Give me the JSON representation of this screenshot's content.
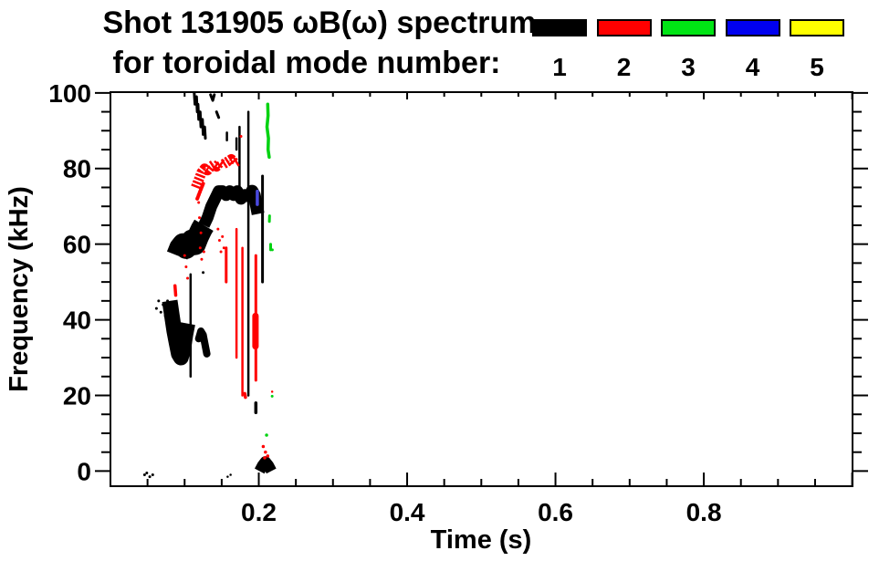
{
  "title": {
    "line1": "Shot 131905 ωB(ω) spectrum",
    "line2": "for toroidal mode number:"
  },
  "legend": {
    "items": [
      {
        "mode": "1",
        "color": "#000000"
      },
      {
        "mode": "2",
        "color": "#ff0000"
      },
      {
        "mode": "3",
        "color": "#00e414"
      },
      {
        "mode": "4",
        "color": "#0000f0"
      },
      {
        "mode": "5",
        "color": "#ffff00"
      }
    ]
  },
  "chart_data": {
    "type": "scatter",
    "title": "Shot 131905 ωB(ω) spectrum for toroidal mode number: 1 2 3 4 5",
    "xlabel": "Time (s)",
    "ylabel": "Frequency (kHz)",
    "xlim": [
      0,
      1.0
    ],
    "ylim": [
      -4,
      100.2
    ],
    "grid": false,
    "x_ticks": [
      {
        "v": 0.2,
        "label": "0.2"
      },
      {
        "v": 0.4,
        "label": "0.4"
      },
      {
        "v": 0.6,
        "label": "0.6"
      },
      {
        "v": 0.8,
        "label": "0.8"
      },
      {
        "v": 1.0,
        "label": ""
      }
    ],
    "x_minor_step": 0.05,
    "y_ticks": [
      {
        "v": 0,
        "label": "0"
      },
      {
        "v": 20,
        "label": "20"
      },
      {
        "v": 40,
        "label": "40"
      },
      {
        "v": 60,
        "label": "60"
      },
      {
        "v": 80,
        "label": "80"
      },
      {
        "v": 100,
        "label": "100"
      }
    ],
    "y_minor_step": 5,
    "series": [
      {
        "name": "n=1",
        "color": "#000000",
        "strokes": [
          {
            "w": 3,
            "pts": [
              [
                0.113,
                100
              ],
              [
                0.114,
                97
              ],
              [
                0.116,
                99
              ],
              [
                0.117,
                95
              ],
              [
                0.118,
                97
              ],
              [
                0.119,
                93
              ],
              [
                0.121,
                95
              ],
              [
                0.122,
                91
              ],
              [
                0.124,
                93
              ],
              [
                0.125,
                89
              ],
              [
                0.127,
                91
              ],
              [
                0.128,
                88
              ]
            ]
          },
          {
            "w": 3,
            "pts": [
              [
                0.143,
                95
              ],
              [
                0.146,
                93.5
              ]
            ]
          },
          {
            "w": 3,
            "pts": [
              [
                0.135,
                99.5
              ],
              [
                0.138,
                98
              ],
              [
                0.14,
                99.5
              ]
            ]
          },
          {
            "w": 2.5,
            "pts": [
              [
                0.157,
                89.5
              ],
              [
                0.157,
                87.5
              ]
            ]
          },
          {
            "w": 2.5,
            "pts": [
              [
                0.17,
                88
              ],
              [
                0.17,
                85
              ]
            ]
          },
          {
            "w": 2.5,
            "pts": [
              [
                0.174,
                91
              ],
              [
                0.174,
                74
              ]
            ]
          },
          {
            "w": 2.5,
            "pts": [
              [
                0.186,
                95
              ],
              [
                0.186,
                20
              ]
            ]
          },
          {
            "w": 3.5,
            "pts": [
              [
                0.196,
                18
              ],
              [
                0.196,
                15.5
              ]
            ]
          },
          {
            "w": 3,
            "pts": [
              [
                0.205,
                78
              ],
              [
                0.205,
                50
              ]
            ]
          },
          {
            "w": 24,
            "pts": [
              [
                0.09,
                57
              ],
              [
                0.094,
                59
              ],
              [
                0.098,
                60
              ],
              [
                0.102,
                59
              ],
              [
                0.106,
                60
              ],
              [
                0.11,
                61
              ],
              [
                0.114,
                60
              ],
              [
                0.118,
                62
              ],
              [
                0.123,
                64
              ],
              [
                0.126,
                65
              ]
            ]
          },
          {
            "w": 13,
            "pts": [
              [
                0.126,
                65
              ],
              [
                0.131,
                67
              ],
              [
                0.136,
                70
              ],
              [
                0.141,
                72
              ],
              [
                0.146,
                74
              ],
              [
                0.151,
                74
              ],
              [
                0.156,
                73
              ],
              [
                0.161,
                74
              ],
              [
                0.166,
                73
              ],
              [
                0.171,
                74
              ],
              [
                0.176,
                72
              ],
              [
                0.181,
                73
              ],
              [
                0.185,
                72
              ]
            ]
          },
          {
            "w": 14,
            "pts": [
              [
                0.188,
                71
              ],
              [
                0.191,
                74
              ],
              [
                0.194,
                73
              ],
              [
                0.197,
                70
              ],
              [
                0.199,
                68
              ]
            ]
          },
          {
            "w": 17,
            "pts": [
              [
                0.08,
                45
              ],
              [
                0.083,
                41
              ],
              [
                0.086,
                37
              ],
              [
                0.089,
                34
              ],
              [
                0.092,
                31
              ],
              [
                0.095,
                30
              ],
              [
                0.098,
                32
              ],
              [
                0.101,
                36
              ],
              [
                0.104,
                39
              ]
            ]
          },
          {
            "w": 2.5,
            "pts": [
              [
                0.108,
                52
              ],
              [
                0.108,
                25
              ]
            ]
          },
          {
            "w": 8,
            "pts": [
              [
                0.119,
                35
              ],
              [
                0.122,
                37
              ],
              [
                0.125,
                36
              ],
              [
                0.128,
                33
              ],
              [
                0.13,
                31
              ]
            ]
          },
          {
            "w": 3,
            "pts": [
              [
                0.062,
                43
              ]
            ]
          },
          {
            "w": 3,
            "pts": [
              [
                0.065,
                45
              ]
            ]
          },
          {
            "w": 3,
            "pts": [
              [
                0.068,
                42
              ]
            ]
          },
          {
            "w": 3,
            "pts": [
              [
                0.071,
                44
              ]
            ]
          },
          {
            "w": 3,
            "pts": [
              [
                0.074,
                41
              ]
            ]
          },
          {
            "w": 3,
            "pts": [
              [
                0.077,
                45
              ]
            ]
          },
          {
            "w": 3,
            "pts": [
              [
                0.046,
                -1
              ]
            ]
          },
          {
            "w": 3,
            "pts": [
              [
                0.049,
                -0.5
              ]
            ]
          },
          {
            "w": 3,
            "pts": [
              [
                0.053,
                -1.5
              ]
            ]
          },
          {
            "w": 3,
            "pts": [
              [
                0.057,
                -1
              ]
            ]
          },
          {
            "w": 2.5,
            "pts": [
              [
                0.158,
                -1.5
              ]
            ]
          },
          {
            "w": 2.5,
            "pts": [
              [
                0.162,
                -1
              ]
            ]
          },
          {
            "w": 12,
            "pts": [
              [
                0.201,
                0
              ],
              [
                0.205,
                1.5
              ],
              [
                0.209,
                2.5
              ],
              [
                0.213,
                1.5
              ],
              [
                0.217,
                0
              ]
            ]
          },
          {
            "w": 3,
            "pts": [
              [
                0.125,
                52.5
              ]
            ]
          }
        ]
      },
      {
        "name": "n=2",
        "color": "#ff0000",
        "strokes": [
          {
            "w": 11,
            "dash": "2.5 1.7",
            "pts": [
              [
                0.115,
                75
              ],
              [
                0.119,
                77
              ],
              [
                0.123,
                79
              ],
              [
                0.127,
                80
              ],
              [
                0.131,
                79.5
              ],
              [
                0.135,
                80.5
              ],
              [
                0.139,
                81
              ],
              [
                0.143,
                80.5
              ],
              [
                0.147,
                81.5
              ],
              [
                0.151,
                81
              ],
              [
                0.155,
                81.5
              ],
              [
                0.159,
                82
              ],
              [
                0.163,
                82.5
              ],
              [
                0.167,
                81.5
              ],
              [
                0.171,
                82
              ]
            ]
          },
          {
            "w": 4,
            "dash": "2 1.5",
            "pts": [
              [
                0.117,
                72
              ],
              [
                0.121,
                74
              ],
              [
                0.125,
                76
              ]
            ]
          },
          {
            "w": 3,
            "pts": [
              [
                0.119,
                71
              ]
            ]
          },
          {
            "w": 3,
            "pts": [
              [
                0.12,
                67
              ]
            ]
          },
          {
            "w": 3,
            "pts": [
              [
                0.122,
                63
              ]
            ]
          },
          {
            "w": 3,
            "pts": [
              [
                0.121,
                59
              ]
            ]
          },
          {
            "w": 3,
            "pts": [
              [
                0.123,
                56
              ]
            ]
          },
          {
            "w": 3,
            "pts": [
              [
                0.126,
                58
              ]
            ]
          },
          {
            "w": 3.5,
            "pts": [
              [
                0.087,
                49
              ],
              [
                0.088,
                46.5
              ]
            ]
          },
          {
            "w": 3,
            "pts": [
              [
                0.1,
                57
              ]
            ]
          },
          {
            "w": 3,
            "pts": [
              [
                0.102,
                54
              ]
            ]
          },
          {
            "w": 3,
            "pts": [
              [
                0.104,
                51
              ]
            ]
          },
          {
            "w": 3,
            "pts": [
              [
                0.156,
                59
              ],
              [
                0.156,
                50
              ]
            ]
          },
          {
            "w": 2.5,
            "pts": [
              [
                0.17,
                64
              ],
              [
                0.17,
                30
              ]
            ]
          },
          {
            "w": 2.5,
            "pts": [
              [
                0.178,
                59
              ],
              [
                0.178,
                20
              ]
            ]
          },
          {
            "w": 3.5,
            "pts": [
              [
                0.181,
                20.5
              ],
              [
                0.182,
                19.5
              ]
            ]
          },
          {
            "w": 3,
            "pts": [
              [
                0.196,
                57
              ],
              [
                0.196,
                24
              ]
            ]
          },
          {
            "w": 7,
            "pts": [
              [
                0.1955,
                41
              ],
              [
                0.1955,
                33
              ]
            ]
          },
          {
            "w": 3.5,
            "pts": [
              [
                0.206,
                6.5
              ]
            ]
          },
          {
            "w": 3.5,
            "pts": [
              [
                0.209,
                5
              ]
            ]
          },
          {
            "w": 3.5,
            "pts": [
              [
                0.212,
                4
              ]
            ]
          },
          {
            "w": 3.5,
            "pts": [
              [
                0.208,
                3.5
              ]
            ]
          },
          {
            "w": 3,
            "pts": [
              [
                0.176,
                88.5
              ]
            ]
          },
          {
            "w": 3,
            "pts": [
              [
                0.145,
                64
              ]
            ]
          },
          {
            "w": 3,
            "pts": [
              [
                0.147,
                61
              ]
            ]
          },
          {
            "w": 3,
            "pts": [
              [
                0.149,
                58
              ]
            ]
          },
          {
            "w": 3,
            "pts": [
              [
                0.151,
                62
              ]
            ]
          },
          {
            "w": 3,
            "pts": [
              [
                0.153,
                59
              ]
            ]
          },
          {
            "w": 2.5,
            "pts": [
              [
                0.218,
                21
              ]
            ]
          }
        ]
      },
      {
        "name": "n=3",
        "color": "#00d211",
        "strokes": [
          {
            "w": 3.5,
            "pts": [
              [
                0.212,
                97
              ],
              [
                0.2125,
                94
              ],
              [
                0.211,
                91
              ],
              [
                0.213,
                88
              ],
              [
                0.2125,
                85
              ],
              [
                0.214,
                83
              ]
            ]
          },
          {
            "w": 3,
            "pts": [
              [
                0.2145,
                67.5
              ],
              [
                0.2142,
                66
              ]
            ]
          },
          {
            "w": 3,
            "pts": [
              [
                0.216,
                60
              ],
              [
                0.216,
                58.5
              ]
            ]
          },
          {
            "w": 3.5,
            "pts": [
              [
                0.2105,
                9.5
              ]
            ]
          },
          {
            "w": 3,
            "pts": [
              [
                0.218,
                19.8
              ]
            ]
          },
          {
            "w": 3,
            "pts": [
              [
                0.2183,
                58.5
              ]
            ]
          }
        ]
      },
      {
        "name": "n=4",
        "color": "#4a4ae0",
        "strokes": [
          {
            "w": 3.5,
            "pts": [
              [
                0.198,
                74
              ],
              [
                0.198,
                70.5
              ]
            ]
          }
        ]
      },
      {
        "name": "n=5",
        "color": "#ffff00",
        "strokes": []
      }
    ]
  }
}
